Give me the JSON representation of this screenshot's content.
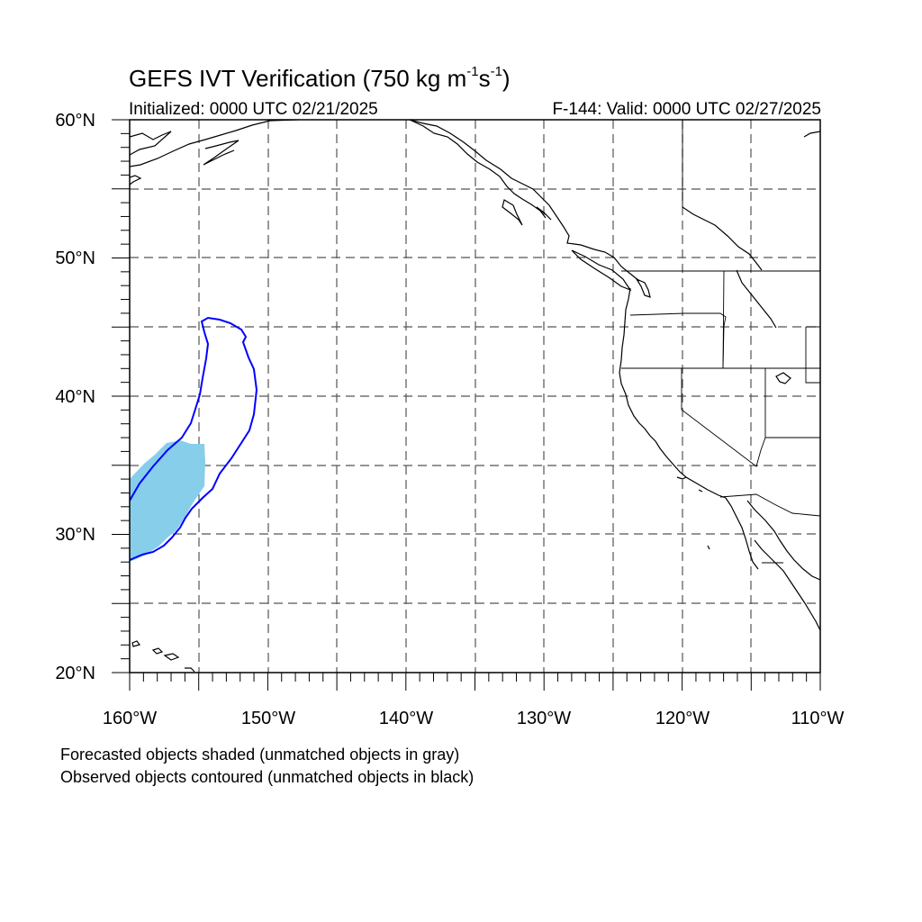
{
  "title": {
    "prefix": "GEFS IVT Verification (750 kg m",
    "exp1": "-1",
    "mid": "s",
    "exp2": "-1",
    "suffix": ")"
  },
  "init_text": "Initialized: 0000 UTC 02/21/2025",
  "valid_text": "F-144: Valid: 0000 UTC 02/27/2025",
  "lat_labels": [
    "60°N",
    "50°N",
    "40°N",
    "30°N",
    "20°N"
  ],
  "lon_labels": [
    "160°W",
    "150°W",
    "140°W",
    "130°W",
    "120°W",
    "110°W"
  ],
  "notes": [
    "Forecasted objects shaded (unmatched objects in gray)",
    "Observed objects contoured (unmatched objects in black)"
  ],
  "colors": {
    "forecast_fill": "#87ceeb",
    "observed_contour": "#0000ff",
    "grid": "#555555",
    "coast": "#000000"
  }
}
